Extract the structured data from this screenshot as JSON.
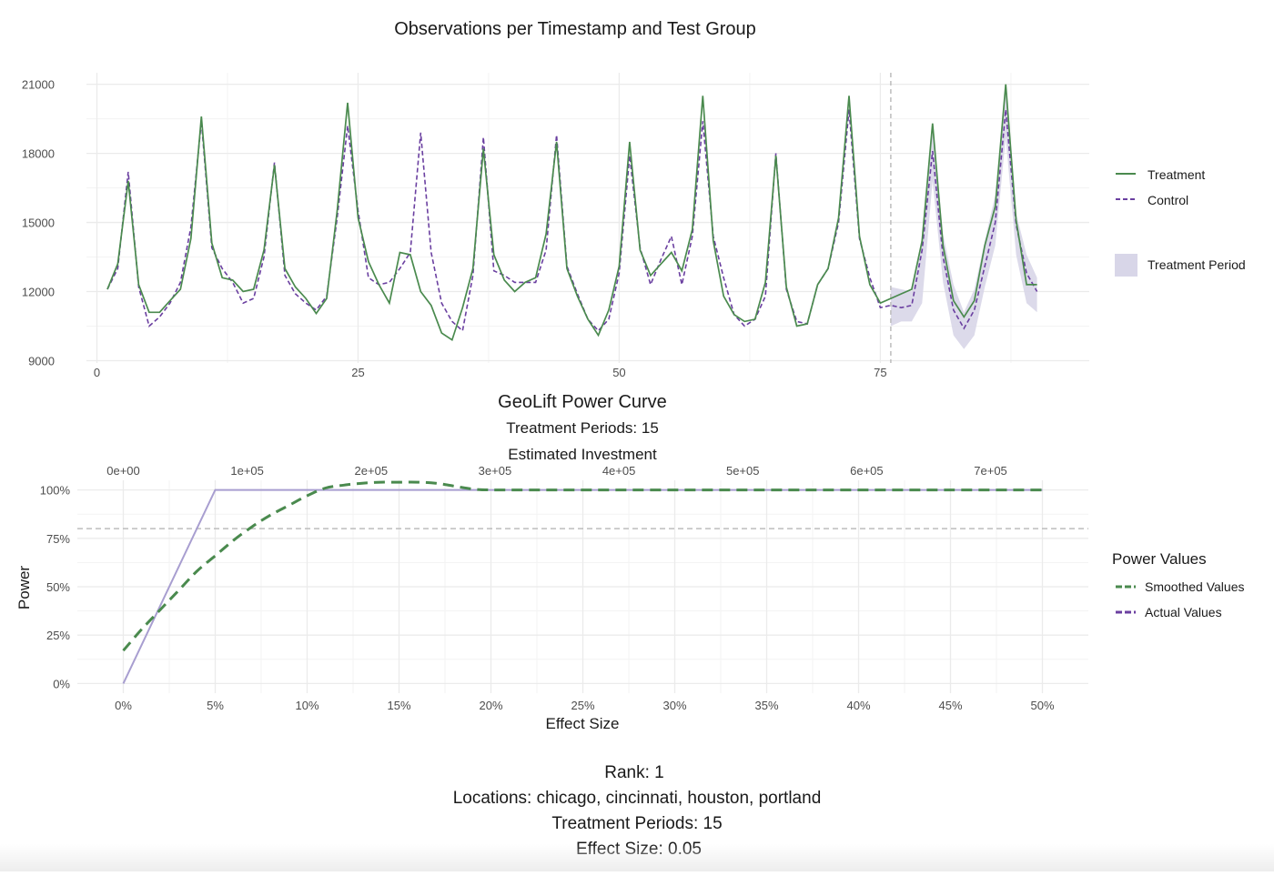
{
  "colors": {
    "treatment": "#4a8a4e",
    "control": "#6a3fa0",
    "band": "#d8d6e8",
    "grid": "#ebebeb",
    "gridMinor": "#f3f3f3",
    "ref": "#bdbdbd",
    "actual": "#a89ed0",
    "smoothed": "#4a8a4e"
  },
  "top_chart": {
    "title": "Observations per Timestamp and Test Group",
    "legend": {
      "treatment": "Treatment",
      "control": "Control",
      "band": "Treatment Period"
    }
  },
  "power_chart": {
    "title": "GeoLift Power Curve",
    "subtitle": "Treatment Periods: 15",
    "secondary_axis_title": "Estimated Investment",
    "xlabel": "Effect Size",
    "ylabel": "Power",
    "legend_title": "Power Values",
    "legend": {
      "smoothed": "Smoothed Values",
      "actual": "Actual Values"
    }
  },
  "caption": {
    "line1": "Rank: 1",
    "line2": "Locations: chicago, cincinnati, houston, portland",
    "line3": "Treatment Periods: 15",
    "line4": "Effect Size:  0.05"
  },
  "chart_data": [
    {
      "type": "line",
      "title": "Observations per Timestamp and Test Group",
      "xlabel": "",
      "ylabel": "",
      "xlim": [
        -1,
        95
      ],
      "ylim": [
        8900,
        21500
      ],
      "xticks": [
        0,
        25,
        50,
        75
      ],
      "yticks": [
        9000,
        12000,
        15000,
        18000,
        21000
      ],
      "grid": true,
      "legend_position": "right",
      "treatment_start": 76,
      "x": [
        1,
        2,
        3,
        4,
        5,
        6,
        7,
        8,
        9,
        10,
        11,
        12,
        13,
        14,
        15,
        16,
        17,
        18,
        19,
        20,
        21,
        22,
        23,
        24,
        25,
        26,
        27,
        28,
        29,
        30,
        31,
        32,
        33,
        34,
        35,
        36,
        37,
        38,
        39,
        40,
        41,
        42,
        43,
        44,
        45,
        46,
        47,
        48,
        49,
        50,
        51,
        52,
        53,
        54,
        55,
        56,
        57,
        58,
        59,
        60,
        61,
        62,
        63,
        64,
        65,
        66,
        67,
        68,
        69,
        70,
        71,
        72,
        73,
        74,
        75,
        76,
        77,
        78,
        79,
        80,
        81,
        82,
        83,
        84,
        85,
        86,
        87,
        88,
        89,
        90
      ],
      "series": [
        {
          "name": "Treatment",
          "values": [
            12100,
            13200,
            16800,
            12300,
            11100,
            11100,
            11600,
            12100,
            14300,
            19600,
            14100,
            12600,
            12500,
            12000,
            12100,
            13800,
            17500,
            13000,
            12200,
            11700,
            11050,
            11700,
            15500,
            20200,
            15200,
            13300,
            12300,
            11500,
            13700,
            13600,
            12000,
            11400,
            10200,
            9900,
            11300,
            13000,
            18200,
            13600,
            12500,
            12000,
            12400,
            12600,
            14500,
            18500,
            13000,
            11800,
            10800,
            10100,
            11200,
            13100,
            18500,
            13800,
            12700,
            13200,
            13700,
            12900,
            14700,
            20500,
            14200,
            11800,
            11000,
            10700,
            10800,
            12400,
            17900,
            12200,
            10500,
            10600,
            12300,
            13000,
            15200,
            20500,
            14400,
            12300,
            11500,
            11700,
            11900,
            12100,
            14200,
            19300,
            14000,
            11600,
            10900,
            11600,
            14000,
            15700,
            21000,
            15100,
            12300,
            12300
          ]
        },
        {
          "name": "Control",
          "values": [
            12100,
            13000,
            17200,
            12200,
            10500,
            10900,
            11500,
            12400,
            14800,
            19400,
            13900,
            13000,
            12400,
            11500,
            11700,
            13500,
            17600,
            12700,
            11900,
            11500,
            11200,
            11800,
            15200,
            19200,
            15500,
            12600,
            12300,
            12400,
            13000,
            13700,
            18900,
            13700,
            11500,
            10700,
            10300,
            12700,
            18700,
            12900,
            12700,
            12400,
            12400,
            12400,
            13800,
            18800,
            13100,
            11900,
            10800,
            10300,
            10800,
            12800,
            17900,
            13900,
            12300,
            13400,
            14400,
            12300,
            14400,
            19400,
            14400,
            12600,
            11000,
            10500,
            10800,
            11800,
            18000,
            12100,
            10700,
            10600,
            12300,
            13000,
            15000,
            19900,
            14300,
            12600,
            11300,
            11400,
            11300,
            11400,
            13800,
            18100,
            13500,
            11200,
            10400,
            11200,
            13100,
            15000,
            19900,
            14900,
            12800,
            12000
          ]
        },
        {
          "name": "Treatment Period",
          "x": [
            76,
            77,
            78,
            79,
            80,
            81,
            82,
            83,
            84,
            85,
            86,
            87,
            88,
            89,
            90
          ],
          "lower": [
            10500,
            10700,
            10700,
            11500,
            16800,
            12400,
            10100,
            9500,
            10100,
            12200,
            14000,
            18700,
            13600,
            11500,
            11100
          ],
          "upper": [
            12200,
            12100,
            12000,
            14400,
            19300,
            14500,
            12300,
            11100,
            12100,
            14200,
            16200,
            20600,
            15400,
            13600,
            12600
          ]
        }
      ]
    },
    {
      "type": "line",
      "title": "GeoLift Power Curve",
      "subtitle": "Treatment Periods: 15",
      "xlabel": "Effect Size",
      "ylabel": "Power",
      "xlim": [
        -2.5,
        52.5
      ],
      "ylim": [
        -0.05,
        1.05
      ],
      "xticks": [
        "0%",
        "5%",
        "10%",
        "15%",
        "20%",
        "25%",
        "30%",
        "35%",
        "40%",
        "45%",
        "50%"
      ],
      "yticks": [
        "0%",
        "25%",
        "50%",
        "75%",
        "100%"
      ],
      "secondary_x_title": "Estimated Investment",
      "secondary_xticks": [
        "0e+00",
        "1e+05",
        "2e+05",
        "3e+05",
        "4e+05",
        "5e+05",
        "6e+05",
        "7e+05"
      ],
      "reference_power": 0.8,
      "grid": true,
      "legend_position": "right",
      "series": [
        {
          "name": "Smoothed Values",
          "x": [
            0,
            1,
            2,
            3,
            4,
            5,
            6,
            7,
            8,
            9,
            10,
            11,
            12,
            13,
            14,
            15,
            16,
            17,
            18,
            19,
            20,
            22,
            25,
            30,
            35,
            40,
            45,
            50
          ],
          "values": [
            0.17,
            0.28,
            0.38,
            0.48,
            0.58,
            0.66,
            0.74,
            0.81,
            0.87,
            0.92,
            0.97,
            1.01,
            1.025,
            1.035,
            1.04,
            1.04,
            1.04,
            1.035,
            1.02,
            1.005,
            1.0,
            1.0,
            1.0,
            1.0,
            1.0,
            1.0,
            1.0,
            1.0
          ]
        },
        {
          "name": "Actual Values",
          "x": [
            0,
            5,
            10,
            15,
            20,
            25,
            30,
            35,
            40,
            45,
            50
          ],
          "values": [
            0.0,
            1.0,
            1.0,
            1.0,
            1.0,
            1.0,
            1.0,
            1.0,
            1.0,
            1.0,
            1.0
          ]
        }
      ]
    }
  ]
}
